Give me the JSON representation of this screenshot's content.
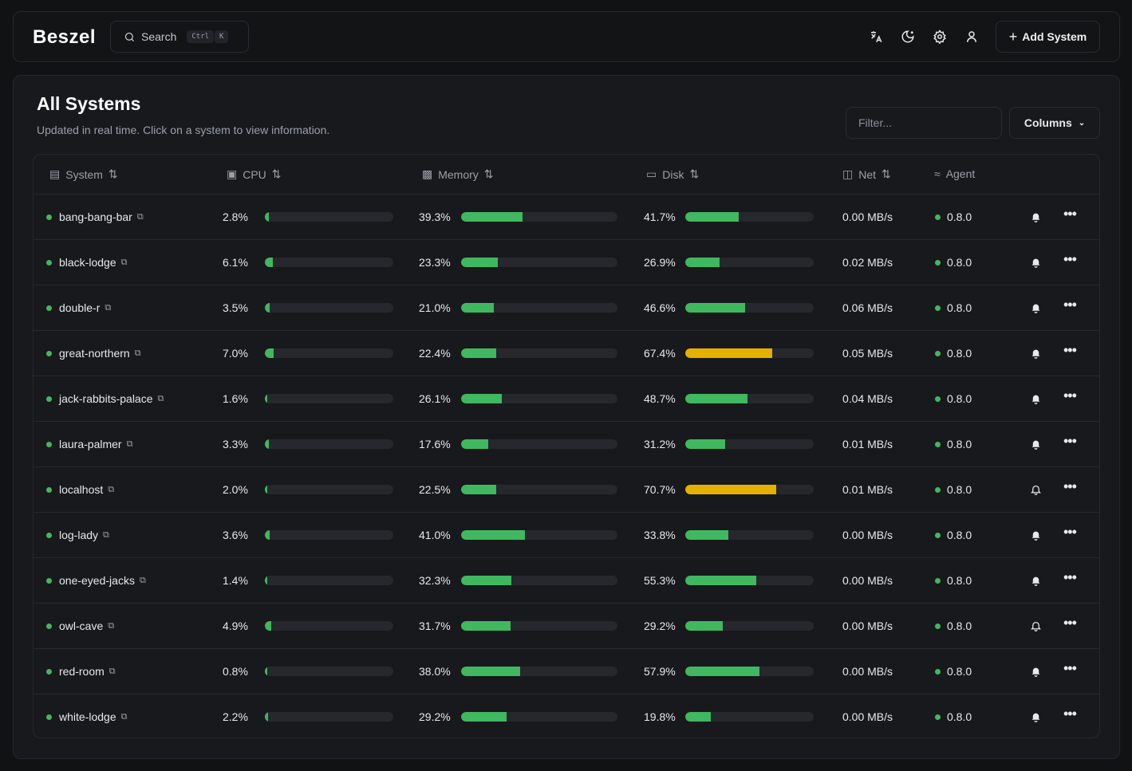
{
  "header": {
    "logo": "Beszel",
    "search_label": "Search",
    "kbd_ctrl": "Ctrl",
    "kbd_k": "K",
    "add_system": "Add System",
    "icons": [
      "translate-icon",
      "moon-icon",
      "gear-icon",
      "user-icon"
    ]
  },
  "main": {
    "title": "All Systems",
    "subtitle": "Updated in real time. Click on a system to view information.",
    "filter_placeholder": "Filter...",
    "columns_label": "Columns"
  },
  "table": {
    "headers": {
      "system": "System",
      "cpu": "CPU",
      "memory": "Memory",
      "disk": "Disk",
      "net": "Net",
      "agent": "Agent"
    },
    "colors": {
      "ok": "#3fb85f",
      "warn": "#e6b000"
    },
    "rows": [
      {
        "name": "bang-bang-bar",
        "cpu": "2.8%",
        "cpu_v": 2.8,
        "mem": "39.3%",
        "mem_v": 39.3,
        "disk": "41.7%",
        "disk_v": 41.7,
        "net": "0.00 MB/s",
        "agent": "0.8.0",
        "alert": true
      },
      {
        "name": "black-lodge",
        "cpu": "6.1%",
        "cpu_v": 6.1,
        "mem": "23.3%",
        "mem_v": 23.3,
        "disk": "26.9%",
        "disk_v": 26.9,
        "net": "0.02 MB/s",
        "agent": "0.8.0",
        "alert": true
      },
      {
        "name": "double-r",
        "cpu": "3.5%",
        "cpu_v": 3.5,
        "mem": "21.0%",
        "mem_v": 21.0,
        "disk": "46.6%",
        "disk_v": 46.6,
        "net": "0.06 MB/s",
        "agent": "0.8.0",
        "alert": true
      },
      {
        "name": "great-northern",
        "cpu": "7.0%",
        "cpu_v": 7.0,
        "mem": "22.4%",
        "mem_v": 22.4,
        "disk": "67.4%",
        "disk_v": 67.4,
        "net": "0.05 MB/s",
        "agent": "0.8.0",
        "alert": true
      },
      {
        "name": "jack-rabbits-palace",
        "cpu": "1.6%",
        "cpu_v": 1.6,
        "mem": "26.1%",
        "mem_v": 26.1,
        "disk": "48.7%",
        "disk_v": 48.7,
        "net": "0.04 MB/s",
        "agent": "0.8.0",
        "alert": true
      },
      {
        "name": "laura-palmer",
        "cpu": "3.3%",
        "cpu_v": 3.3,
        "mem": "17.6%",
        "mem_v": 17.6,
        "disk": "31.2%",
        "disk_v": 31.2,
        "net": "0.01 MB/s",
        "agent": "0.8.0",
        "alert": true
      },
      {
        "name": "localhost",
        "cpu": "2.0%",
        "cpu_v": 2.0,
        "mem": "22.5%",
        "mem_v": 22.5,
        "disk": "70.7%",
        "disk_v": 70.7,
        "net": "0.01 MB/s",
        "agent": "0.8.0",
        "alert": false
      },
      {
        "name": "log-lady",
        "cpu": "3.6%",
        "cpu_v": 3.6,
        "mem": "41.0%",
        "mem_v": 41.0,
        "disk": "33.8%",
        "disk_v": 33.8,
        "net": "0.00 MB/s",
        "agent": "0.8.0",
        "alert": true
      },
      {
        "name": "one-eyed-jacks",
        "cpu": "1.4%",
        "cpu_v": 1.4,
        "mem": "32.3%",
        "mem_v": 32.3,
        "disk": "55.3%",
        "disk_v": 55.3,
        "net": "0.00 MB/s",
        "agent": "0.8.0",
        "alert": true
      },
      {
        "name": "owl-cave",
        "cpu": "4.9%",
        "cpu_v": 4.9,
        "mem": "31.7%",
        "mem_v": 31.7,
        "disk": "29.2%",
        "disk_v": 29.2,
        "net": "0.00 MB/s",
        "agent": "0.8.0",
        "alert": false
      },
      {
        "name": "red-room",
        "cpu": "0.8%",
        "cpu_v": 0.8,
        "mem": "38.0%",
        "mem_v": 38.0,
        "disk": "57.9%",
        "disk_v": 57.9,
        "net": "0.00 MB/s",
        "agent": "0.8.0",
        "alert": true
      },
      {
        "name": "white-lodge",
        "cpu": "2.2%",
        "cpu_v": 2.2,
        "mem": "29.2%",
        "mem_v": 29.2,
        "disk": "19.8%",
        "disk_v": 19.8,
        "net": "0.00 MB/s",
        "agent": "0.8.0",
        "alert": true
      }
    ]
  }
}
